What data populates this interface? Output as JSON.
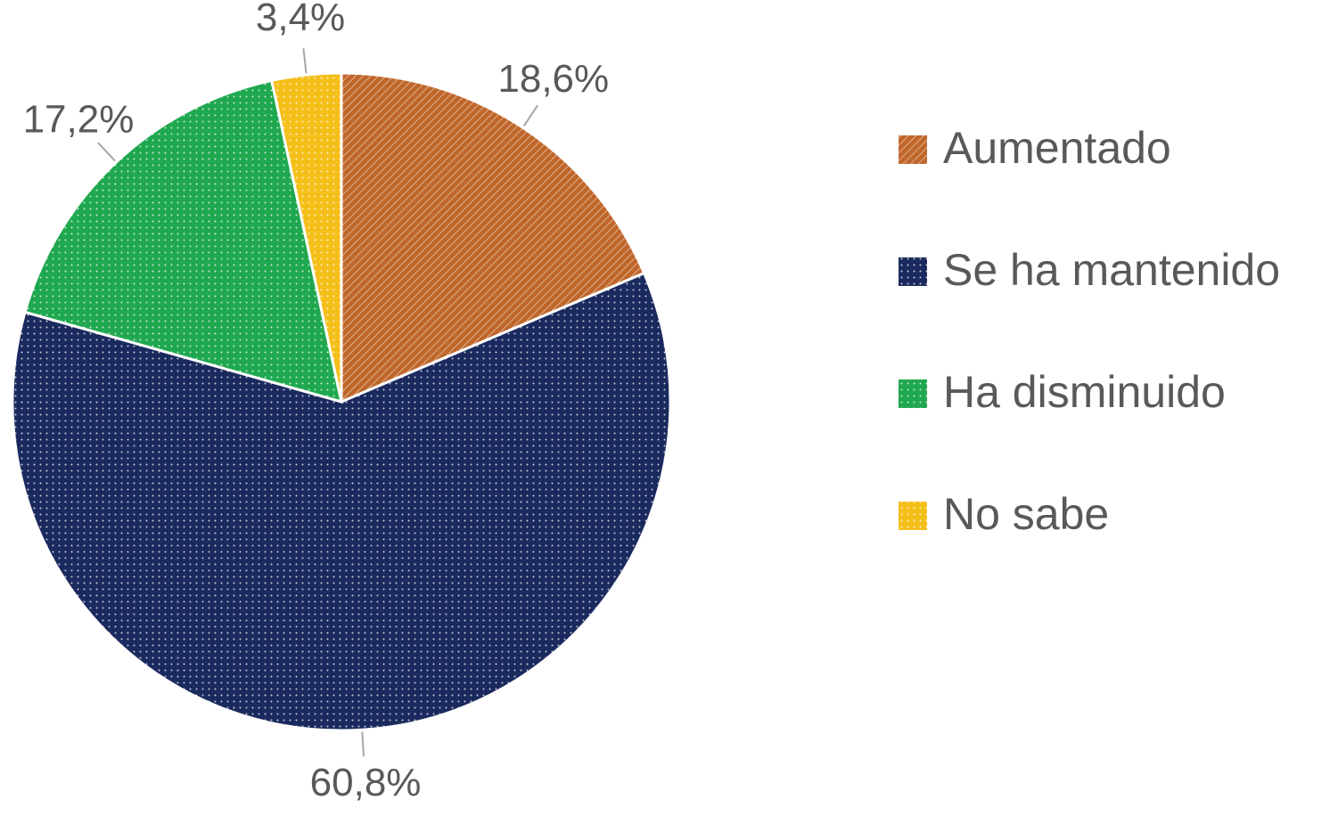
{
  "chart_data": {
    "type": "pie",
    "categories": [
      "Aumentado",
      "Se ha mantenido",
      "Ha disminuido",
      "No sabe"
    ],
    "values": [
      18.6,
      60.8,
      17.2,
      3.4
    ],
    "value_labels": [
      "18,6%",
      "60,8%",
      "17,2%",
      "3,4%"
    ],
    "colors": [
      "#c0662a",
      "#1b2a5e",
      "#1fa84f",
      "#f5bf1a"
    ],
    "patterns": [
      "hatch",
      "dots",
      "dots",
      "dots"
    ],
    "legend": "right"
  }
}
